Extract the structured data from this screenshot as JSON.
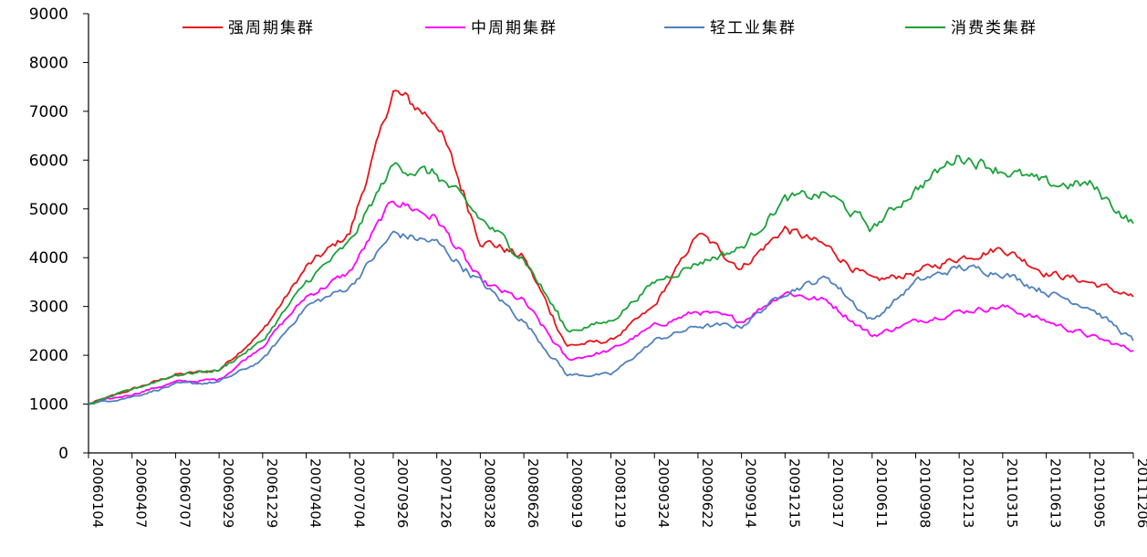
{
  "chart_data": {
    "type": "line",
    "title": "",
    "xlabel": "",
    "ylabel": "",
    "ylim": [
      0,
      9000
    ],
    "yticks": [
      0,
      1000,
      2000,
      3000,
      4000,
      5000,
      6000,
      7000,
      8000,
      9000
    ],
    "x_tick_labels": [
      "20060104",
      "20060407",
      "20060707",
      "20060929",
      "20061229",
      "20070404",
      "20070704",
      "20070926",
      "20071226",
      "20080328",
      "20080626",
      "20080919",
      "20081219",
      "20090324",
      "20090622",
      "20090914",
      "20091215",
      "20100317",
      "20100611",
      "20100908",
      "20101213",
      "20110315",
      "20110613",
      "20110905",
      "20111206"
    ],
    "grid": false,
    "legend_position": "top",
    "series": [
      {
        "name": "强周期集群",
        "color": "#e8141a",
        "values": [
          1000,
          1300,
          1600,
          1700,
          2500,
          3800,
          4500,
          7400,
          6800,
          4400,
          4000,
          2200,
          2300,
          3000,
          4500,
          3800,
          4600,
          4200,
          3500,
          3700,
          4000,
          4200,
          3700,
          3500,
          3200
        ]
      },
      {
        "name": "中周期集群",
        "color": "#ff00ff",
        "values": [
          1000,
          1200,
          1450,
          1500,
          2200,
          3200,
          3700,
          5200,
          4800,
          3500,
          3100,
          1900,
          2100,
          2600,
          2900,
          2700,
          3300,
          3100,
          2400,
          2700,
          2900,
          3000,
          2700,
          2400,
          2100
        ]
      },
      {
        "name": "轻工业集群",
        "color": "#4f81bd",
        "values": [
          1000,
          1150,
          1400,
          1450,
          1900,
          3000,
          3400,
          4500,
          4300,
          3500,
          2700,
          1600,
          1600,
          2300,
          2600,
          2600,
          3300,
          3600,
          2700,
          3500,
          3800,
          3700,
          3300,
          3000,
          2300
        ]
      },
      {
        "name": "消费类集群",
        "color": "#1aa23a",
        "values": [
          1000,
          1300,
          1600,
          1700,
          2300,
          3500,
          4300,
          5900,
          5700,
          4800,
          4000,
          2500,
          2700,
          3500,
          3900,
          4200,
          5200,
          5300,
          4600,
          5400,
          6100,
          5800,
          5500,
          5500,
          4700
        ]
      }
    ]
  }
}
